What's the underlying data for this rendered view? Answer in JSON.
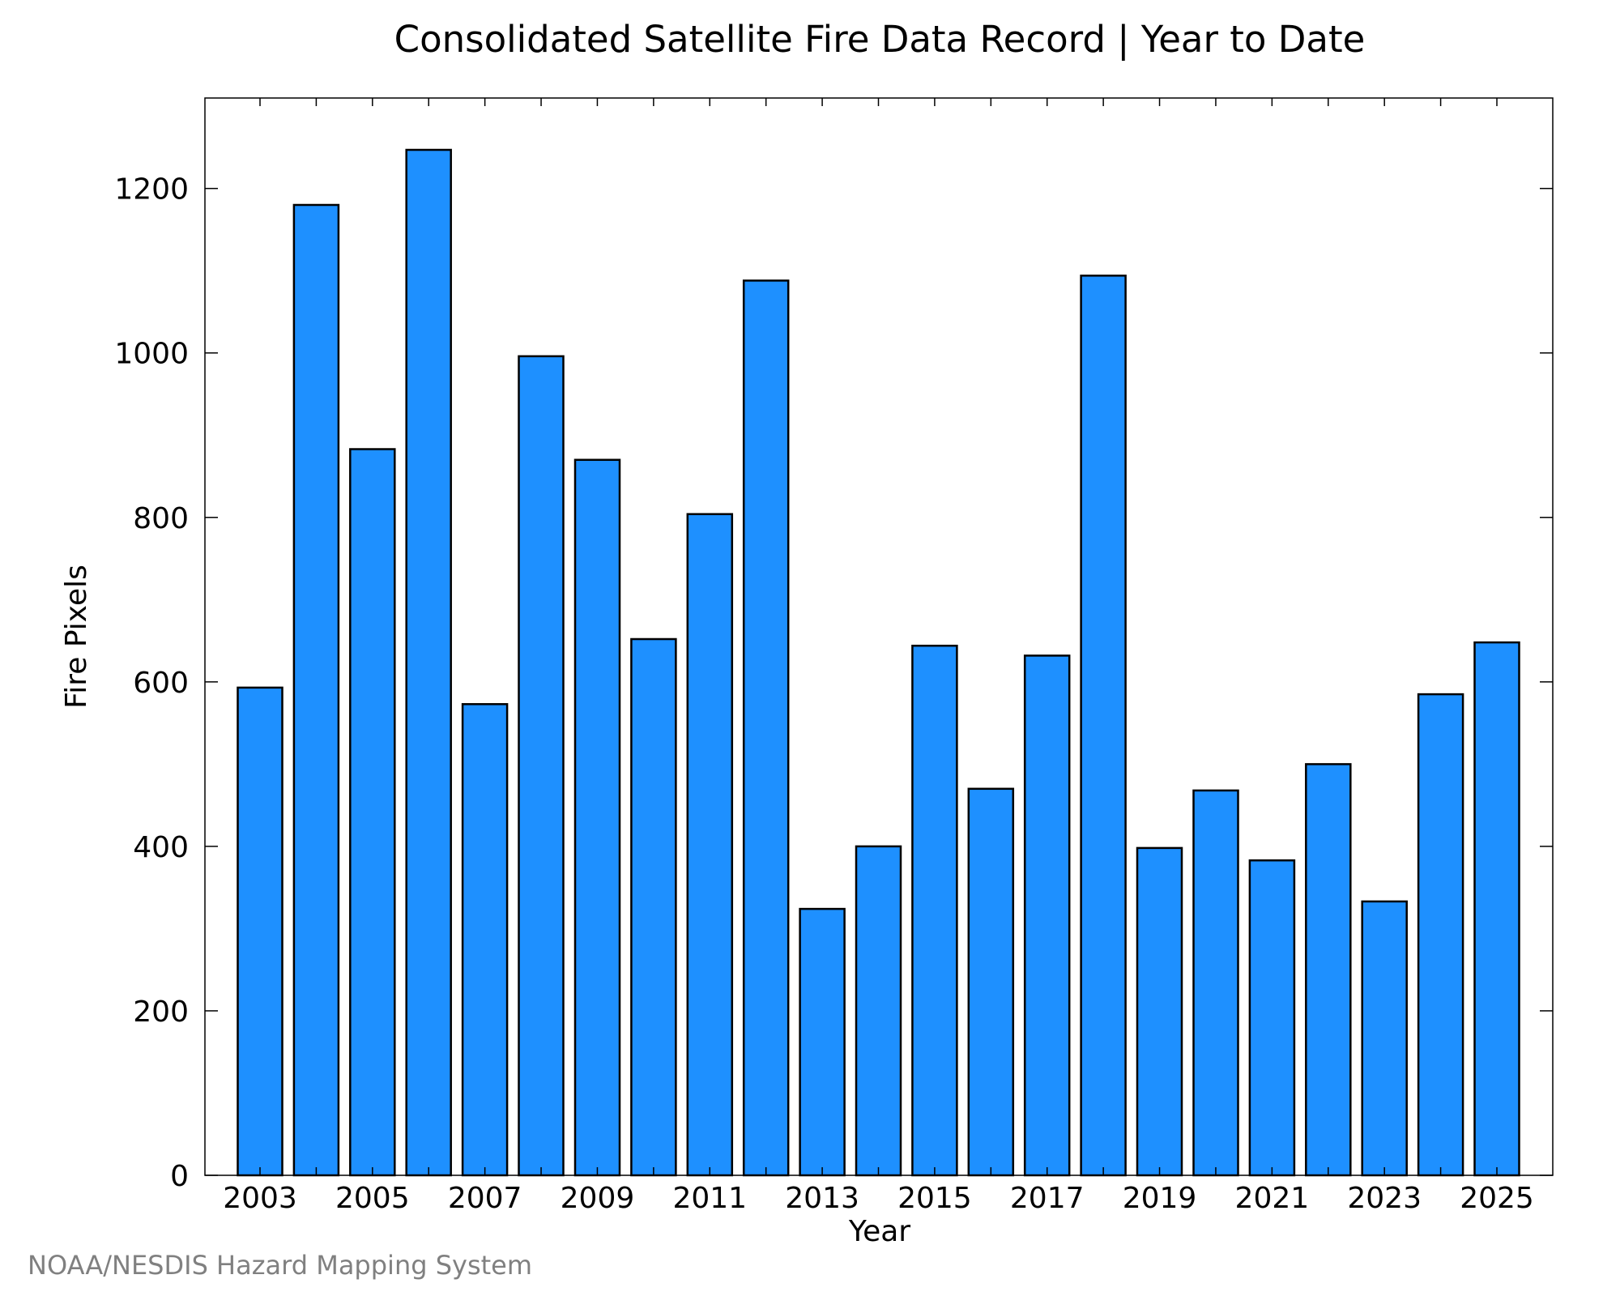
{
  "chart_data": {
    "type": "bar",
    "title": "Consolidated Satellite Fire Data Record | Year to Date",
    "xlabel": "Year",
    "ylabel": "Fire Pixels",
    "categories": [
      "2003",
      "2004",
      "2005",
      "2006",
      "2007",
      "2008",
      "2009",
      "2010",
      "2011",
      "2012",
      "2013",
      "2014",
      "2015",
      "2016",
      "2017",
      "2018",
      "2019",
      "2020",
      "2021",
      "2022",
      "2023",
      "2024",
      "2025"
    ],
    "values": [
      593,
      1180,
      883,
      1247,
      573,
      996,
      870,
      652,
      804,
      1088,
      324,
      400,
      644,
      470,
      632,
      1094,
      398,
      468,
      383,
      500,
      333,
      585,
      648
    ],
    "x_tick_labels": [
      "2003",
      "2005",
      "2007",
      "2009",
      "2011",
      "2013",
      "2015",
      "2017",
      "2019",
      "2021",
      "2023",
      "2025"
    ],
    "y_tick_labels": [
      "0",
      "200",
      "400",
      "600",
      "800",
      "1000",
      "1200"
    ],
    "ylim": [
      0,
      1310
    ],
    "grid": false,
    "bar_color": "#1E90FF",
    "bar_edge_color": "#000000"
  },
  "credit": "NOAA/NESDIS Hazard Mapping System"
}
